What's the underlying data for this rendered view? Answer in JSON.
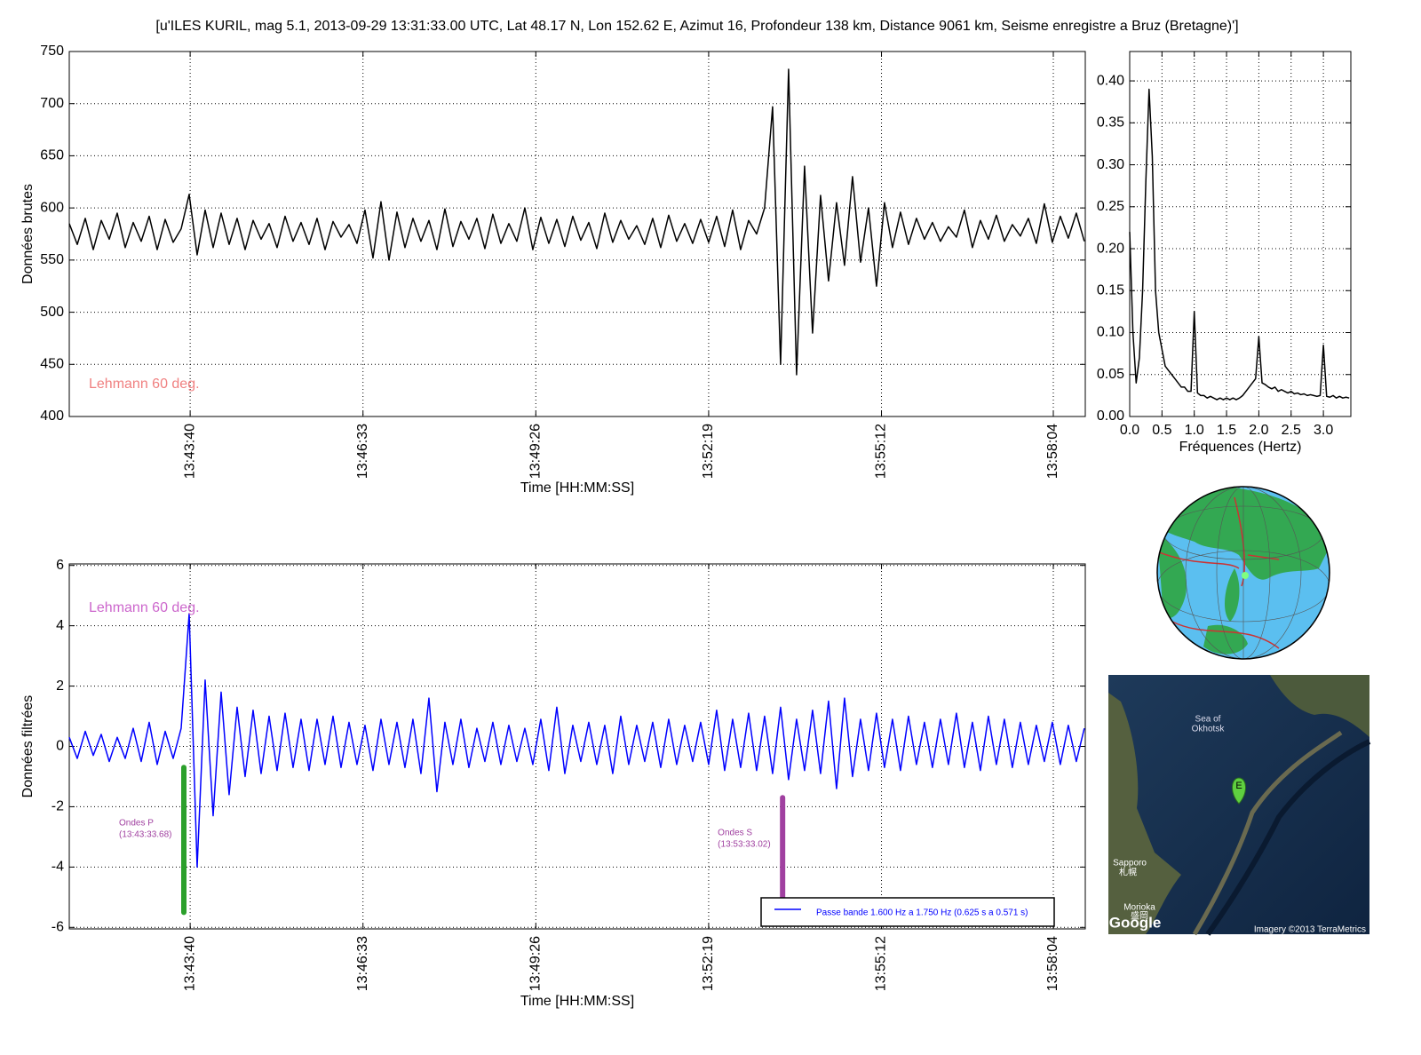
{
  "chart_data": [
    {
      "type": "line",
      "title": "[u'ILES KURIL, mag 5.1, 2013-09-29 13:31:33.00 UTC, Lat 48.17 N, Lon 152.62 E, Azimut 16, Profondeur 138 km, Distance 9061 km, Seisme enregistre a Bruz (Bretagne)']",
      "xlabel": "Time [HH:MM:SS]",
      "ylabel": "Données brutes",
      "grid": true,
      "annotation": {
        "text": "Lehmann 60 deg.",
        "color": "#f08080"
      },
      "xlim": [
        49299,
        50316
      ],
      "ylim": [
        400,
        750
      ],
      "xticks": [
        {
          "value": 49420,
          "label": "13:43:40"
        },
        {
          "value": 49593,
          "label": "13:46:33"
        },
        {
          "value": 49766,
          "label": "13:49:26"
        },
        {
          "value": 49939,
          "label": "13:52:19"
        },
        {
          "value": 50112,
          "label": "13:55:12"
        },
        {
          "value": 50284,
          "label": "13:58:04"
        }
      ],
      "yticks": [
        400,
        450,
        500,
        550,
        600,
        650,
        700,
        750
      ],
      "x": [
        49299,
        49307,
        49315,
        49323,
        49331,
        49339,
        49347,
        49355,
        49363,
        49371,
        49379,
        49387,
        49395,
        49403,
        49411,
        49419,
        49427,
        49435,
        49443,
        49451,
        49459,
        49467,
        49475,
        49483,
        49491,
        49499,
        49507,
        49515,
        49523,
        49531,
        49539,
        49547,
        49555,
        49563,
        49571,
        49579,
        49587,
        49595,
        49603,
        49611,
        49619,
        49627,
        49635,
        49643,
        49651,
        49659,
        49667,
        49675,
        49683,
        49691,
        49699,
        49707,
        49715,
        49723,
        49731,
        49739,
        49747,
        49755,
        49763,
        49771,
        49779,
        49787,
        49795,
        49803,
        49811,
        49819,
        49827,
        49835,
        49843,
        49851,
        49859,
        49867,
        49875,
        49883,
        49891,
        49899,
        49907,
        49915,
        49923,
        49931,
        49939,
        49947,
        49955,
        49963,
        49971,
        49979,
        49987,
        49995,
        50003,
        50011,
        50019,
        50027,
        50035,
        50043,
        50051,
        50059,
        50067,
        50075,
        50083,
        50091,
        50099,
        50107,
        50115,
        50123,
        50131,
        50139,
        50147,
        50155,
        50163,
        50171,
        50179,
        50187,
        50195,
        50203,
        50211,
        50219,
        50227,
        50235,
        50243,
        50251,
        50259,
        50267,
        50275,
        50283,
        50291,
        50299,
        50307,
        50315
      ],
      "series": [
        {
          "color": "#000000",
          "values": [
            585,
            565,
            590,
            560,
            588,
            570,
            595,
            562,
            586,
            568,
            592,
            560,
            589,
            567,
            580,
            613,
            555,
            598,
            562,
            595,
            565,
            590,
            560,
            588,
            570,
            585,
            562,
            592,
            568,
            586,
            565,
            590,
            560,
            587,
            572,
            584,
            566,
            598,
            552,
            606,
            550,
            596,
            562,
            590,
            568,
            588,
            560,
            599,
            563,
            587,
            570,
            590,
            561,
            594,
            566,
            585,
            568,
            600,
            560,
            591,
            566,
            589,
            563,
            592,
            569,
            586,
            561,
            595,
            567,
            588,
            570,
            583,
            565,
            590,
            562,
            593,
            568,
            585,
            566,
            589,
            567,
            592,
            563,
            598,
            560,
            588,
            575,
            600,
            697,
            450,
            733,
            440,
            640,
            480,
            612,
            530,
            605,
            545,
            630,
            548,
            600,
            525,
            605,
            562,
            596,
            565,
            590,
            570,
            586,
            568,
            582,
            572,
            598,
            562,
            588,
            570,
            593,
            568,
            584,
            573,
            590,
            566,
            604,
            567,
            592,
            571,
            595,
            568
          ]
        }
      ]
    },
    {
      "type": "line",
      "xlabel": "Fréquences (Hertz)",
      "grid": true,
      "xlim": [
        0,
        3.425
      ],
      "ylim": [
        0,
        0.435
      ],
      "xticks": [
        {
          "value": 0,
          "label": "0.0"
        },
        0.5,
        {
          "value": 1,
          "label": "1.0"
        },
        1.5,
        {
          "value": 2,
          "label": "2.0"
        },
        2.5,
        {
          "value": 3,
          "label": "3.0"
        }
      ],
      "yticks": [
        {
          "value": 0,
          "label": "0.00"
        },
        0.05,
        {
          "value": 0.1,
          "label": "0.10"
        },
        0.15,
        {
          "value": 0.2,
          "label": "0.20"
        },
        0.25,
        {
          "value": 0.3,
          "label": "0.30"
        },
        0.35,
        {
          "value": 0.4,
          "label": "0.40"
        }
      ],
      "x": [
        0,
        0.05,
        0.1,
        0.15,
        0.2,
        0.25,
        0.3,
        0.35,
        0.4,
        0.45,
        0.5,
        0.55,
        0.6,
        0.65,
        0.7,
        0.75,
        0.8,
        0.85,
        0.9,
        0.95,
        1,
        1.05,
        1.1,
        1.15,
        1.2,
        1.25,
        1.3,
        1.35,
        1.4,
        1.45,
        1.5,
        1.55,
        1.6,
        1.65,
        1.7,
        1.75,
        1.8,
        1.85,
        1.9,
        1.95,
        2,
        2.05,
        2.1,
        2.15,
        2.2,
        2.25,
        2.3,
        2.35,
        2.4,
        2.45,
        2.5,
        2.55,
        2.6,
        2.65,
        2.7,
        2.75,
        2.8,
        2.85,
        2.9,
        2.95,
        3,
        3.05,
        3.1,
        3.15,
        3.2,
        3.25,
        3.3,
        3.35,
        3.4
      ],
      "series": [
        {
          "color": "#000000",
          "values": [
            0.22,
            0.1,
            0.04,
            0.07,
            0.15,
            0.28,
            0.39,
            0.31,
            0.15,
            0.1,
            0.08,
            0.06,
            0.055,
            0.05,
            0.045,
            0.04,
            0.035,
            0.035,
            0.03,
            0.03,
            0.125,
            0.028,
            0.025,
            0.025,
            0.022,
            0.024,
            0.022,
            0.02,
            0.022,
            0.02,
            0.022,
            0.02,
            0.022,
            0.02,
            0.022,
            0.025,
            0.03,
            0.035,
            0.04,
            0.045,
            0.095,
            0.04,
            0.038,
            0.035,
            0.033,
            0.035,
            0.03,
            0.032,
            0.03,
            0.028,
            0.03,
            0.027,
            0.028,
            0.026,
            0.027,
            0.025,
            0.026,
            0.025,
            0.024,
            0.025,
            0.085,
            0.024,
            0.023,
            0.025,
            0.022,
            0.024,
            0.022,
            0.023,
            0.022
          ]
        }
      ]
    },
    {
      "type": "line",
      "xlabel": "Time [HH:MM:SS]",
      "ylabel": "Données filtrées",
      "grid": true,
      "legend": "lower right",
      "annotation": {
        "text": "Lehmann 60 deg.",
        "color": "#cc66cc"
      },
      "markers": [
        {
          "label": "Ondes P",
          "time": "(13:43:33.68)",
          "x": 49413.68,
          "y": [
            -0.7,
            -5.5
          ],
          "color": "#2ca02c",
          "label_color": "#a040a0"
        },
        {
          "label": "Ondes S",
          "time": "(13:53:33.02)",
          "x": 50013.02,
          "y": [
            -1.7,
            -5.2
          ],
          "color": "#a040a0",
          "label_color": "#a040a0"
        }
      ],
      "xlim": [
        49299,
        50316
      ],
      "ylim": [
        -6.05,
        6.05
      ],
      "xticks": [
        {
          "value": 49420,
          "label": "13:43:40"
        },
        {
          "value": 49593,
          "label": "13:46:33"
        },
        {
          "value": 49766,
          "label": "13:49:26"
        },
        {
          "value": 49939,
          "label": "13:52:19"
        },
        {
          "value": 50112,
          "label": "13:55:12"
        },
        {
          "value": 50284,
          "label": "13:58:04"
        }
      ],
      "yticks": [
        -6,
        -4,
        -2,
        0,
        2,
        4,
        6
      ],
      "x": [
        49299,
        49307,
        49315,
        49323,
        49331,
        49339,
        49347,
        49355,
        49363,
        49371,
        49379,
        49387,
        49395,
        49403,
        49411,
        49419,
        49427,
        49435,
        49443,
        49451,
        49459,
        49467,
        49475,
        49483,
        49491,
        49499,
        49507,
        49515,
        49523,
        49531,
        49539,
        49547,
        49555,
        49563,
        49571,
        49579,
        49587,
        49595,
        49603,
        49611,
        49619,
        49627,
        49635,
        49643,
        49651,
        49659,
        49667,
        49675,
        49683,
        49691,
        49699,
        49707,
        49715,
        49723,
        49731,
        49739,
        49747,
        49755,
        49763,
        49771,
        49779,
        49787,
        49795,
        49803,
        49811,
        49819,
        49827,
        49835,
        49843,
        49851,
        49859,
        49867,
        49875,
        49883,
        49891,
        49899,
        49907,
        49915,
        49923,
        49931,
        49939,
        49947,
        49955,
        49963,
        49971,
        49979,
        49987,
        49995,
        50003,
        50011,
        50019,
        50027,
        50035,
        50043,
        50051,
        50059,
        50067,
        50075,
        50083,
        50091,
        50099,
        50107,
        50115,
        50123,
        50131,
        50139,
        50147,
        50155,
        50163,
        50171,
        50179,
        50187,
        50195,
        50203,
        50211,
        50219,
        50227,
        50235,
        50243,
        50251,
        50259,
        50267,
        50275,
        50283,
        50291,
        50299,
        50307,
        50315
      ],
      "series": [
        {
          "name": "Passe bande 1.600 Hz a 1.750 Hz (0.625 s a 0.571 s)",
          "color": "#0000ff",
          "values": [
            0.3,
            -0.4,
            0.5,
            -0.3,
            0.4,
            -0.5,
            0.3,
            -0.4,
            0.6,
            -0.5,
            0.8,
            -0.6,
            0.5,
            -0.4,
            0.6,
            4.4,
            -4.0,
            2.2,
            -2.3,
            1.8,
            -1.6,
            1.3,
            -1.0,
            1.2,
            -0.9,
            1.0,
            -0.8,
            1.1,
            -0.7,
            0.9,
            -0.8,
            0.9,
            -0.6,
            1.0,
            -0.7,
            0.8,
            -0.6,
            0.7,
            -0.8,
            0.9,
            -0.6,
            0.8,
            -0.7,
            0.9,
            -0.9,
            1.6,
            -1.5,
            0.8,
            -0.6,
            0.9,
            -0.7,
            0.6,
            -0.5,
            0.8,
            -0.6,
            0.7,
            -0.5,
            0.6,
            -0.6,
            0.9,
            -0.8,
            1.3,
            -0.9,
            0.7,
            -0.5,
            0.8,
            -0.6,
            0.7,
            -0.9,
            1.0,
            -0.6,
            0.7,
            -0.5,
            0.8,
            -0.7,
            0.9,
            -0.6,
            0.7,
            -0.5,
            0.8,
            -0.6,
            1.2,
            -0.8,
            0.9,
            -0.7,
            1.1,
            -0.8,
            1.0,
            -0.9,
            1.3,
            -1.1,
            0.9,
            -0.8,
            1.2,
            -0.9,
            1.5,
            -1.4,
            1.6,
            -1.0,
            0.9,
            -0.8,
            1.1,
            -0.7,
            0.9,
            -0.8,
            1.0,
            -0.6,
            0.8,
            -0.7,
            0.9,
            -0.6,
            1.1,
            -0.7,
            0.8,
            -0.8,
            1.0,
            -0.6,
            0.9,
            -0.7,
            0.8,
            -0.6,
            0.7,
            -0.5,
            0.8,
            -0.6,
            0.7,
            -0.5,
            0.6
          ]
        }
      ]
    }
  ],
  "map": {
    "sea": [
      "Sea of",
      "Okhotsk"
    ],
    "city1": "Sapporo",
    "city1_local": "札幌",
    "city2": "Morioka",
    "city2_local": "盛岡",
    "pin": "E",
    "logo": "Google",
    "credit": "Imagery ©2013 TerraMetrics"
  }
}
